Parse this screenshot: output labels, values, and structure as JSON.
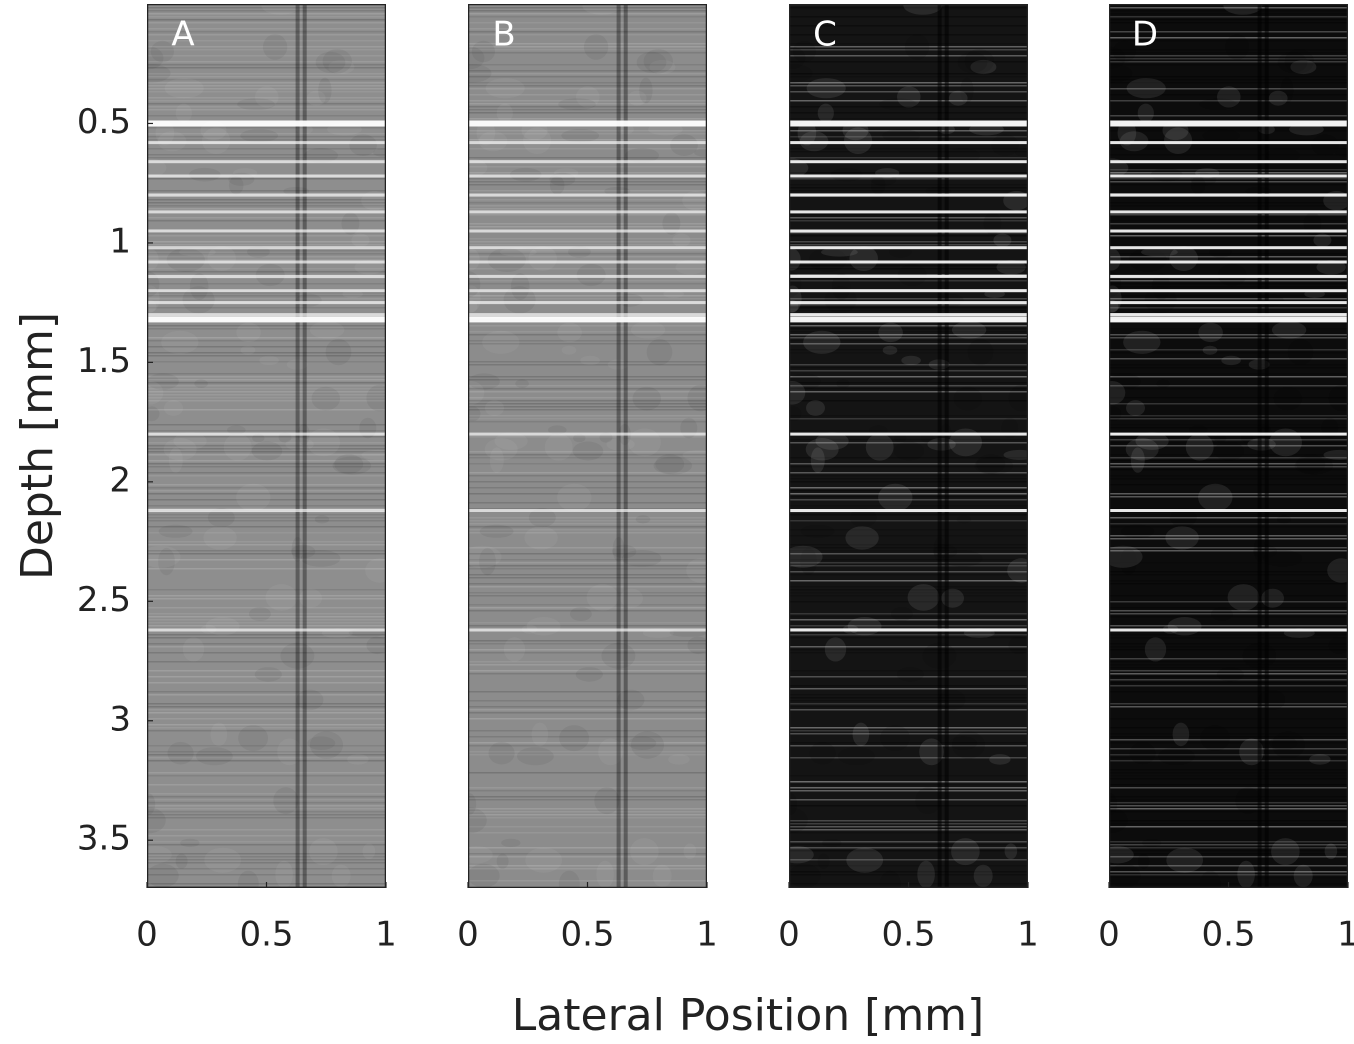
{
  "figure": {
    "xlabel": "Lateral Position [mm]",
    "ylabel": "Depth [mm]"
  },
  "chart_data": {
    "type": "heatmap",
    "xlabel": "Lateral Position [mm]",
    "ylabel": "Depth [mm]",
    "xlim": [
      0,
      1
    ],
    "ylim": [
      0,
      3.7
    ],
    "x_ticks": [
      0,
      0.5,
      1
    ],
    "x_tick_labels": [
      "0",
      "0.5",
      "1"
    ],
    "y_ticks": [
      0.5,
      1,
      1.5,
      2,
      2.5,
      3,
      3.5
    ],
    "y_tick_labels": [
      "0.5",
      "1",
      "1.5",
      "2",
      "2.5",
      "3",
      "3.5"
    ],
    "colormap": "gray",
    "panels": [
      {
        "label": "A",
        "background": "#8e8e8e",
        "contrast": 0.35
      },
      {
        "label": "B",
        "background": "#8c8c8c",
        "contrast": 0.35
      },
      {
        "label": "C",
        "background": "#141414",
        "contrast": 1.0
      },
      {
        "label": "D",
        "background": "#0c0c0c",
        "contrast": 1.0
      }
    ],
    "bright_layers_depth": [
      0.5,
      0.58,
      0.66,
      0.72,
      0.8,
      0.87,
      0.95,
      1.02,
      1.08,
      1.14,
      1.2,
      1.25,
      1.3,
      1.32,
      1.8,
      2.12,
      2.62
    ],
    "dark_vertical_lines_x": [
      0.63,
      0.66
    ]
  }
}
